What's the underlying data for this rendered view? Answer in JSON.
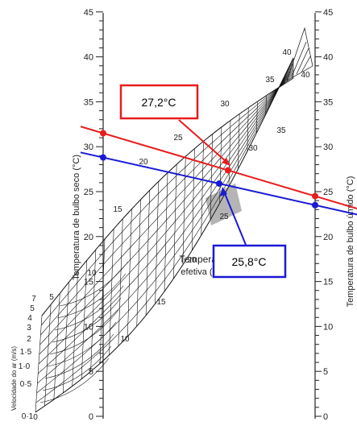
{
  "diagram": {
    "left_axis": {
      "title": "Temperatura de bulbo seco (°C)",
      "ticks": [
        {
          "label": "45",
          "value": 45
        },
        {
          "label": "40",
          "value": 40
        },
        {
          "label": "35",
          "value": 35
        },
        {
          "label": "30",
          "value": 30
        },
        {
          "label": "25",
          "value": 25
        },
        {
          "label": "20",
          "value": 20
        },
        {
          "label": "15",
          "value": 15
        },
        {
          "label": "10",
          "value": 10
        },
        {
          "label": "5",
          "value": 5
        },
        {
          "label": "0",
          "value": 0
        }
      ]
    },
    "right_axis": {
      "title": "Temperatura de bulbo úmido (°C)",
      "ticks": [
        {
          "label": "45",
          "value": 45
        },
        {
          "label": "40",
          "value": 40
        },
        {
          "label": "35",
          "value": 35
        },
        {
          "label": "30",
          "value": 30
        },
        {
          "label": "25",
          "value": 25
        },
        {
          "label": "20",
          "value": 20
        },
        {
          "label": "15",
          "value": 15
        },
        {
          "label": "10",
          "value": 10
        },
        {
          "label": "5",
          "value": 5
        },
        {
          "label": "0",
          "value": 0
        }
      ]
    },
    "air_speed_axis": {
      "title": "Velocidade do ar (m/s)",
      "ticks": [
        "0",
        "0·1",
        "0·5",
        "1·0",
        "1·5",
        "2",
        "3",
        "4",
        "5",
        "7"
      ]
    },
    "effective_temp_label": {
      "line1": "Temperatura",
      "line2": "efetiva (°C)"
    },
    "effective_temp_values": [
      "5",
      "10",
      "15",
      "20",
      "25",
      "30",
      "35",
      "40",
      "10",
      "15",
      "20",
      "25",
      "30",
      "35",
      "40"
    ],
    "red_line": {
      "dry_bulb": 31.5,
      "wet_bulb": 24.5,
      "color": "#e81c1c"
    },
    "blue_line": {
      "dry_bulb": 28.8,
      "wet_bulb": 23.5,
      "color": "#1a1ad6"
    },
    "red_callout": {
      "text": "27,2°C",
      "color": "#e81c1c"
    },
    "blue_callout": {
      "text": "25,8°C",
      "color": "#1a1ad6"
    }
  }
}
